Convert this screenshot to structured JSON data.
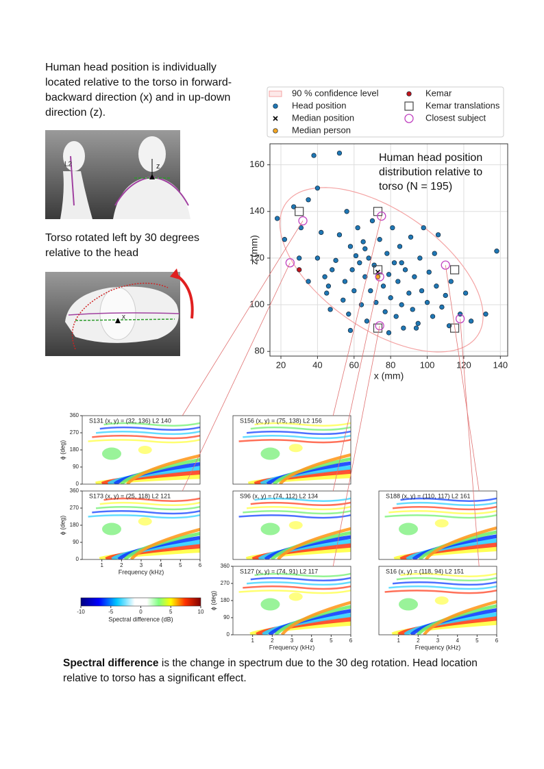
{
  "intro": "Human head position is individually located relative to the torso in forward-backward direction (x) and in up-down direction (z).",
  "rotation_note": "Torso rotated left by 30 degrees relative to the head",
  "figure_labels": {
    "l2": "L2",
    "z": "z",
    "x": "x"
  },
  "chart_data": {
    "type": "scatter",
    "title": "Human head position distribution relative to torso (N = 195)",
    "xlabel": "x (mm)",
    "ylabel": "z (mm)",
    "xlim": [
      14,
      144
    ],
    "ylim": [
      78,
      169
    ],
    "xticks": [
      20,
      40,
      60,
      80,
      100,
      120,
      140
    ],
    "yticks": [
      80,
      100,
      120,
      140,
      160
    ],
    "grid": true,
    "legend": "top",
    "confidence": {
      "name": "90 % confidence level",
      "color": "#f4a3a3",
      "center": [
        75,
        115
      ],
      "radii": [
        60,
        27
      ],
      "angle": -25
    },
    "series": [
      {
        "name": "Head position",
        "marker": "o",
        "color": "#1f77b4",
        "x": [
          18,
          27,
          31,
          35,
          38,
          40,
          42,
          44,
          45,
          46,
          47,
          48,
          50,
          52,
          52,
          54,
          55,
          56,
          57,
          58,
          59,
          60,
          61,
          62,
          63,
          64,
          65,
          66,
          67,
          68,
          69,
          70,
          71,
          72,
          74,
          76,
          77,
          78,
          79,
          80,
          81,
          82,
          83,
          84,
          85,
          86,
          87,
          88,
          90,
          91,
          92,
          93,
          95,
          96,
          97,
          98,
          100,
          101,
          103,
          105,
          106,
          108,
          110,
          112,
          113,
          118,
          121,
          124,
          132,
          138,
          30,
          35,
          40,
          22,
          79,
          58,
          66,
          86,
          94,
          104
        ],
        "values": [
          137,
          142,
          133,
          145,
          164,
          150,
          131,
          112,
          105,
          108,
          98,
          115,
          119,
          165,
          130,
          102,
          110,
          140,
          96,
          125,
          115,
          106,
          121,
          133,
          118,
          100,
          127,
          112,
          93,
          120,
          106,
          136,
          117,
          101,
          128,
          108,
          97,
          122,
          113,
          103,
          133,
          118,
          95,
          110,
          125,
          100,
          90,
          115,
          105,
          129,
          98,
          112,
          92,
          120,
          106,
          133,
          101,
          114,
          95,
          108,
          130,
          99,
          104,
          91,
          110,
          96,
          105,
          93,
          96,
          123,
          120,
          110,
          120,
          128,
          88,
          89,
          124,
          118,
          90,
          122
        ]
      },
      {
        "name": "Median position",
        "marker": "x",
        "color": "#000000",
        "x": [
          73
        ],
        "values": [
          114
        ]
      },
      {
        "name": "Median person",
        "marker": "o",
        "color": "#f5a623",
        "x": [
          73
        ],
        "values": [
          112
        ]
      },
      {
        "name": "Kemar",
        "marker": "o",
        "color": "#c0141a",
        "x": [
          30
        ],
        "values": [
          115
        ]
      },
      {
        "name": "Kemar translations",
        "marker": "s",
        "color": "#444444",
        "x": [
          30,
          73,
          73,
          115,
          73,
          115
        ],
        "values": [
          140,
          140,
          115,
          115,
          90,
          90
        ]
      },
      {
        "name": "Closest subject",
        "marker": "ring",
        "color": "#c040c0",
        "x": [
          32,
          75,
          25,
          74,
          110,
          74,
          118
        ],
        "values": [
          136,
          138,
          118,
          112,
          117,
          91,
          94
        ]
      }
    ]
  },
  "spectrogram": {
    "xlabel": "Frequency (kHz)",
    "ylabel": "ϕ (deg)",
    "xlim": [
      0,
      6
    ],
    "ylim": [
      0,
      360
    ],
    "xticks": [
      1,
      2,
      3,
      4,
      5,
      6
    ],
    "yticks": [
      0,
      90,
      180,
      270,
      360
    ],
    "panels": [
      "S131  (x, y) = (32, 136)  L2 140",
      "S156  (x, y) = (75, 138)  L2 156",
      "S173  (x, y) = (25, 118)  L2 121",
      "S96  (x, y) = (74, 112)  L2 134",
      "S188  (x, y) = (110, 117)  L2 161",
      "S127  (x, y) = (74, 91)  L2 117",
      "S16  (x, y) = (118, 94)  L2 151"
    ],
    "colorbar": {
      "label": "Spectral difference (dB)",
      "lim": [
        -10,
        10
      ],
      "ticks": [
        -10,
        -5,
        0,
        5,
        10
      ]
    }
  },
  "caption": {
    "bold": "Spectral difference",
    "text": " is the change in spectrum due to the 30 deg rotation. Head location relative to torso has a significant effect."
  }
}
